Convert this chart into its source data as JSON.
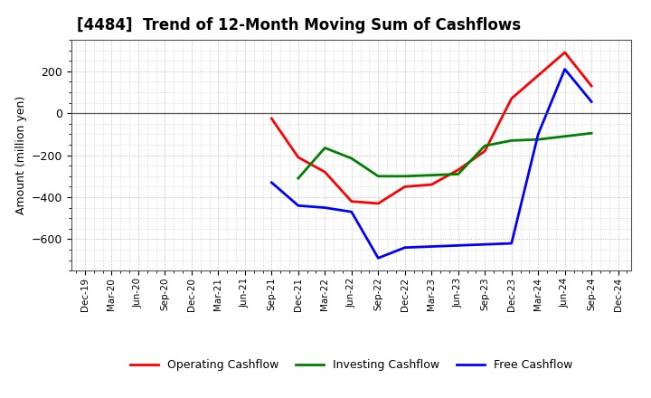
{
  "title": "[4484]  Trend of 12-Month Moving Sum of Cashflows",
  "ylabel": "Amount (million yen)",
  "x_labels": [
    "Dec-19",
    "Mar-20",
    "Jun-20",
    "Sep-20",
    "Dec-20",
    "Mar-21",
    "Jun-21",
    "Sep-21",
    "Dec-21",
    "Mar-22",
    "Jun-22",
    "Sep-22",
    "Dec-22",
    "Mar-23",
    "Jun-23",
    "Sep-23",
    "Dec-23",
    "Mar-24",
    "Jun-24",
    "Sep-24",
    "Dec-24"
  ],
  "op_x": [
    7,
    8,
    9,
    10,
    11,
    12,
    13,
    14,
    15,
    16,
    17,
    18,
    19
  ],
  "op_y": [
    -25,
    -210,
    -280,
    -420,
    -430,
    -350,
    -340,
    -270,
    -180,
    70,
    180,
    290,
    130
  ],
  "inv_x": [
    8,
    9,
    10,
    11,
    12,
    13,
    14,
    15,
    16,
    17,
    18,
    19
  ],
  "inv_y": [
    -310,
    -165,
    -215,
    -300,
    -300,
    -295,
    -290,
    -155,
    -130,
    -125,
    -110,
    -95
  ],
  "free_x": [
    7,
    8,
    9,
    10,
    11,
    12,
    13,
    14,
    16,
    17,
    18,
    19
  ],
  "free_y": [
    -330,
    -440,
    -450,
    -470,
    -690,
    -640,
    -635,
    -630,
    -620,
    -100,
    210,
    55
  ],
  "op_color": "#ff0000",
  "inv_color": "#008000",
  "free_color": "#0000ff",
  "ylim": [
    -750,
    350
  ],
  "yticks": [
    -600,
    -400,
    -200,
    0,
    200
  ],
  "linewidth": 2.0
}
